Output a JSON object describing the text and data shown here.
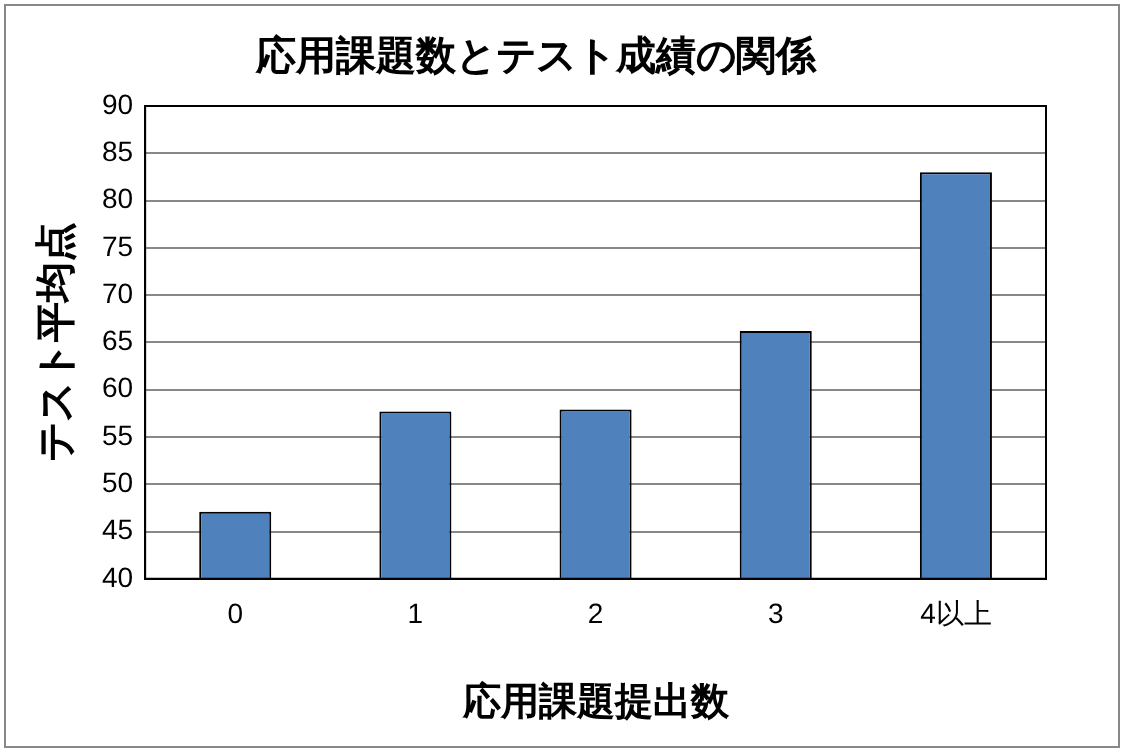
{
  "chart_data": {
    "type": "bar",
    "title": "応用課題数とテスト成績の関係",
    "xlabel": "応用課題提出数",
    "ylabel": "テスト平均点",
    "categories": [
      "0",
      "1",
      "2",
      "3",
      "4以上"
    ],
    "values": [
      47.1,
      57.7,
      57.9,
      66.2,
      83.0
    ],
    "color": "#4f81bd",
    "ylim": [
      40,
      90
    ],
    "yticks": [
      40,
      45,
      50,
      55,
      60,
      65,
      70,
      75,
      80,
      85,
      90
    ],
    "grid": "y",
    "legend": false
  }
}
